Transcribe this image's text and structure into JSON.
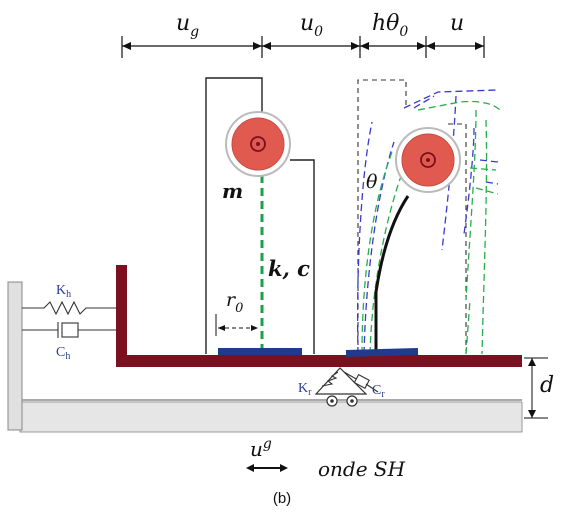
{
  "dimensions": {
    "ug": "u",
    "ug_sub": "g",
    "u0": "u",
    "u0_sub": "0",
    "h_theta0": "hθ",
    "h_theta0_sub": "0",
    "u": "u"
  },
  "labels": {
    "mass": "m",
    "spring_damper": "k, c",
    "radius": "r",
    "radius_sub": "0",
    "theta": "θ",
    "Kh": "K",
    "Kh_sub": "h",
    "Ch": "C",
    "Ch_sub": "h",
    "Kr": "K",
    "Kr_sub": "r",
    "Cr": "C",
    "Cr_sub": "r",
    "depth": "d"
  },
  "excitation": {
    "ug": "u",
    "ug_sup": "g",
    "wave": "onde SH"
  },
  "caption": "(b)",
  "colors": {
    "foundation": "#7a1020",
    "mass_outer": "#e05a50",
    "mass_ring": "#cfcfcf",
    "footing": "#1f3b8c",
    "spring_column": "#1aa04a",
    "mode_blue": "#3a3ad0",
    "mode_green": "#22b04a",
    "label_blue": "#2a3f9a"
  }
}
